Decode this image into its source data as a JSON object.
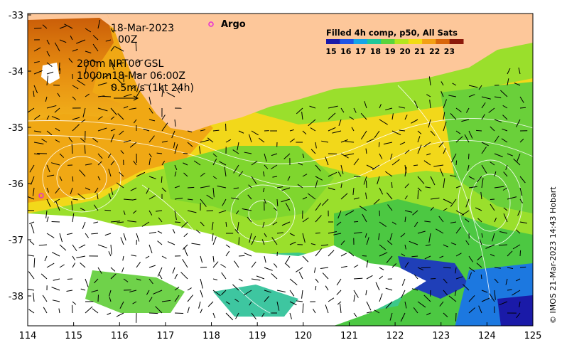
{
  "map": {
    "date_label": "18-Mar-2023",
    "time_label": "00Z",
    "argo_label": "Argo",
    "legend": {
      "title": "Filled 4h comp, p50, All Sats",
      "ticks": [
        "15",
        "16",
        "17",
        "18",
        "19",
        "20",
        "21",
        "22",
        "23"
      ]
    },
    "info": {
      "line1": "200m  NRT00 GSL",
      "line2": "1000m18-Mar 06:00Z",
      "line3": "0.5m/s (1kt 24h)"
    },
    "credit": "© IMOS 21-Mar-2023 14:43 Hobart",
    "axes": {
      "x_ticks": [
        "114",
        "115",
        "116",
        "117",
        "118",
        "119",
        "120",
        "121",
        "122",
        "123",
        "124",
        "125"
      ],
      "y_ticks": [
        "-33",
        "-34",
        "-35",
        "-36",
        "-37",
        "-38"
      ]
    },
    "colors": {
      "land": "#fdc79a",
      "argo_marker": "#e62ad6",
      "colormap": [
        "#1a1aa8",
        "#1f55e6",
        "#14a5e8",
        "#1fc79a",
        "#5ad43c",
        "#b4e61e",
        "#f2dc14",
        "#f2a014",
        "#d9650a",
        "#8c1a0a"
      ]
    }
  }
}
